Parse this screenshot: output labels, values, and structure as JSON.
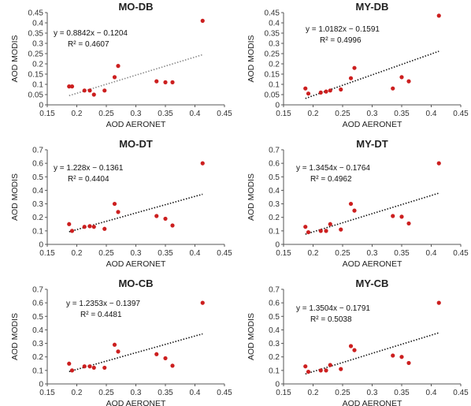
{
  "chart_data": [
    {
      "type": "scatter",
      "title": "MO-DB",
      "xlabel": "AOD AERONET",
      "ylabel": "AOD MODIS",
      "xlim": [
        0.15,
        0.45
      ],
      "ylim": [
        0,
        0.45
      ],
      "xticks": [
        "0.15",
        "0.2",
        "0.25",
        "0.3",
        "0.35",
        "0.4",
        "0.45"
      ],
      "yticks": [
        "0",
        "0.05",
        "0.1",
        "0.15",
        "0.2",
        "0.25",
        "0.3",
        "0.35",
        "0.4",
        "0.45"
      ],
      "equation": "y = 0.8842x − 0.1204",
      "r2": "R² = 0.4607",
      "trend": {
        "slope": 0.8842,
        "intercept": -0.1204,
        "style": "dotted",
        "color": "#888888"
      },
      "points": {
        "x": [
          0.187,
          0.192,
          0.213,
          0.222,
          0.229,
          0.247,
          0.264,
          0.27,
          0.335,
          0.35,
          0.362,
          0.413
        ],
        "y": [
          0.09,
          0.09,
          0.07,
          0.07,
          0.05,
          0.07,
          0.135,
          0.19,
          0.115,
          0.11,
          0.11,
          0.41
        ]
      }
    },
    {
      "type": "scatter",
      "title": "MY-DB",
      "xlabel": "AOD AERONET",
      "ylabel": "AOD MODIS",
      "xlim": [
        0.15,
        0.45
      ],
      "ylim": [
        0,
        0.45
      ],
      "xticks": [
        "0.15",
        "0.2",
        "0.25",
        "0.3",
        "0.35",
        "0.4",
        "0.45"
      ],
      "yticks": [
        "0",
        "0.05",
        "0.1",
        "0.15",
        "0.2",
        "0.25",
        "0.3",
        "0.35",
        "0.4",
        "0.45"
      ],
      "equation": "y = 1.0182x − 0.1591",
      "r2": "R² = 0.4996",
      "trend": {
        "slope": 1.0182,
        "intercept": -0.1591,
        "style": "dotted",
        "color": "#111111"
      },
      "points": {
        "x": [
          0.187,
          0.192,
          0.213,
          0.222,
          0.229,
          0.247,
          0.264,
          0.27,
          0.335,
          0.35,
          0.362,
          0.413
        ],
        "y": [
          0.08,
          0.055,
          0.06,
          0.065,
          0.07,
          0.075,
          0.13,
          0.18,
          0.08,
          0.135,
          0.115,
          0.435
        ]
      }
    },
    {
      "type": "scatter",
      "title": "MO-DT",
      "xlabel": "AOD AERONET",
      "ylabel": "AOD MODIS",
      "xlim": [
        0.15,
        0.45
      ],
      "ylim": [
        0,
        0.7
      ],
      "xticks": [
        "0.15",
        "0.2",
        "0.25",
        "0.3",
        "0.35",
        "0.4",
        "0.45"
      ],
      "yticks": [
        "0",
        "0.1",
        "0.2",
        "0.3",
        "0.4",
        "0.5",
        "0.6",
        "0.7"
      ],
      "equation": "y = 1.228x − 0.1361",
      "r2": "R² = 0.4404",
      "trend": {
        "slope": 1.228,
        "intercept": -0.1361,
        "style": "dotted",
        "color": "#111111"
      },
      "points": {
        "x": [
          0.187,
          0.192,
          0.213,
          0.222,
          0.229,
          0.247,
          0.264,
          0.27,
          0.335,
          0.35,
          0.362,
          0.413
        ],
        "y": [
          0.15,
          0.1,
          0.13,
          0.135,
          0.13,
          0.115,
          0.3,
          0.24,
          0.21,
          0.19,
          0.14,
          0.6
        ]
      }
    },
    {
      "type": "scatter",
      "title": "MY-DT",
      "xlabel": "AOD AERONET",
      "ylabel": "AOD MODIS",
      "xlim": [
        0.15,
        0.45
      ],
      "ylim": [
        0,
        0.7
      ],
      "xticks": [
        "0.15",
        "0.2",
        "0.25",
        "0.3",
        "0.35",
        "0.4",
        "0.45"
      ],
      "yticks": [
        "0",
        "0.1",
        "0.2",
        "0.3",
        "0.4",
        "0.5",
        "0.6",
        "0.7"
      ],
      "equation": "y = 1.3454x − 0.1764",
      "r2": "R² = 0.4962",
      "trend": {
        "slope": 1.3454,
        "intercept": -0.1764,
        "style": "dotted",
        "color": "#111111"
      },
      "points": {
        "x": [
          0.187,
          0.192,
          0.213,
          0.222,
          0.229,
          0.247,
          0.264,
          0.27,
          0.335,
          0.35,
          0.362,
          0.413
        ],
        "y": [
          0.13,
          0.09,
          0.1,
          0.1,
          0.15,
          0.11,
          0.3,
          0.25,
          0.21,
          0.205,
          0.155,
          0.6
        ]
      }
    },
    {
      "type": "scatter",
      "title": "MO-CB",
      "xlabel": "AOD AERONET",
      "ylabel": "AOD MODIS",
      "xlim": [
        0.15,
        0.45
      ],
      "ylim": [
        0,
        0.7
      ],
      "xticks": [
        "0.15",
        "0.2",
        "0.25",
        "0.3",
        "0.35",
        "0.4",
        "0.45"
      ],
      "yticks": [
        "0",
        "0.1",
        "0.2",
        "0.3",
        "0.4",
        "0.5",
        "0.6",
        "0.7"
      ],
      "equation": "y = 1.2353x − 0.1397",
      "r2": "R² = 0.4481",
      "trend": {
        "slope": 1.2353,
        "intercept": -0.1397,
        "style": "dotted",
        "color": "#111111"
      },
      "points": {
        "x": [
          0.187,
          0.192,
          0.213,
          0.222,
          0.229,
          0.247,
          0.264,
          0.27,
          0.335,
          0.35,
          0.362,
          0.413
        ],
        "y": [
          0.15,
          0.1,
          0.13,
          0.13,
          0.12,
          0.12,
          0.29,
          0.24,
          0.22,
          0.19,
          0.135,
          0.6
        ]
      }
    },
    {
      "type": "scatter",
      "title": "MY-CB",
      "xlabel": "AOD AERONET",
      "ylabel": "AOD MODIS",
      "xlim": [
        0.15,
        0.45
      ],
      "ylim": [
        0,
        0.7
      ],
      "xticks": [
        "0.15",
        "0.2",
        "0.25",
        "0.3",
        "0.35",
        "0.4",
        "0.45"
      ],
      "yticks": [
        "0",
        "0.1",
        "0.2",
        "0.3",
        "0.4",
        "0.5",
        "0.6",
        "0.7"
      ],
      "equation": "y = 1.3504x − 0.1791",
      "r2": "R² = 0.5038",
      "trend": {
        "slope": 1.3504,
        "intercept": -0.1791,
        "style": "dotted",
        "color": "#111111"
      },
      "points": {
        "x": [
          0.187,
          0.192,
          0.213,
          0.222,
          0.229,
          0.247,
          0.264,
          0.27,
          0.335,
          0.35,
          0.362,
          0.413
        ],
        "y": [
          0.13,
          0.09,
          0.1,
          0.1,
          0.14,
          0.11,
          0.28,
          0.25,
          0.21,
          0.2,
          0.155,
          0.6
        ]
      }
    }
  ],
  "colors": {
    "point": "#cc1f1f",
    "axis": "#555555"
  }
}
